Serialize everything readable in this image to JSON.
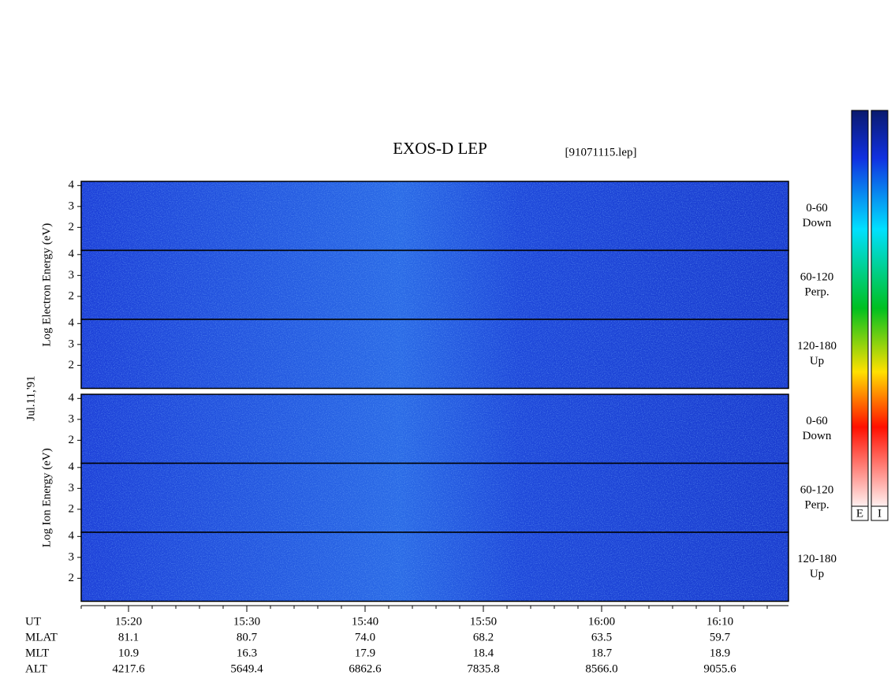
{
  "chart_data": {
    "type": "spectrogram",
    "title": "EXOS-D LEP",
    "subtitle": "[91071115.lep]",
    "date": "Jul.11,'91",
    "ylim": [
      0.9,
      4.2
    ],
    "yticks": [
      2,
      3,
      4
    ],
    "groups": [
      {
        "ylabel": "Log Electron Energy (eV)",
        "panels": [
          [
            "0-60",
            "Down"
          ],
          [
            "60-120",
            "Perp."
          ],
          [
            "120-180",
            "Up"
          ]
        ]
      },
      {
        "ylabel": "Log Ion Energy (eV)",
        "panels": [
          [
            "0-60",
            "Down"
          ],
          [
            "60-120",
            "Perp."
          ],
          [
            "120-180",
            "Up"
          ]
        ]
      }
    ],
    "colorbars": [
      "E",
      "I"
    ],
    "xlabel": "UT",
    "xticks": [
      "15:20",
      "15:30",
      "15:40",
      "15:50",
      "16:00",
      "16:10"
    ],
    "orbit": [
      {
        "label": "MLAT",
        "values": [
          "81.1",
          "80.7",
          "74.0",
          "68.2",
          "63.5",
          "59.7"
        ]
      },
      {
        "label": "MLT",
        "values": [
          "10.9",
          "16.3",
          "17.9",
          "18.4",
          "18.7",
          "18.9"
        ]
      },
      {
        "label": "ALT",
        "values": [
          "4217.6",
          "5649.4",
          "6862.6",
          "7835.8",
          "8566.0",
          "9055.6"
        ]
      }
    ]
  }
}
